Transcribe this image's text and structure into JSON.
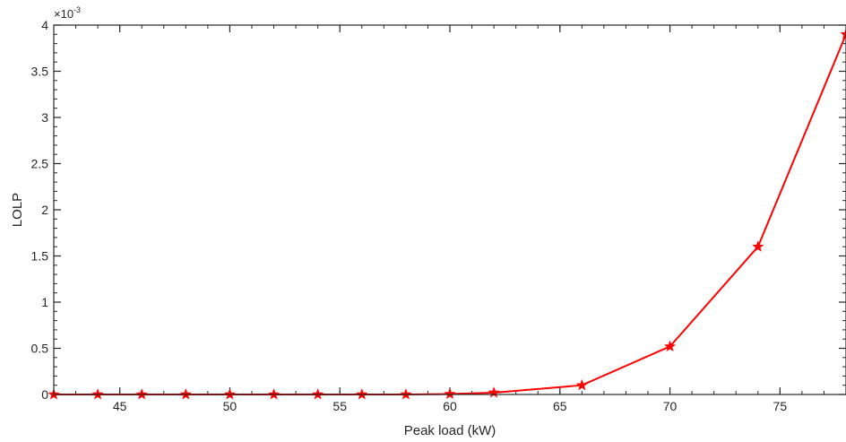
{
  "chart_data": {
    "type": "line",
    "xlabel": "Peak load (kW)",
    "ylabel": "LOLP",
    "xlim": [
      42,
      78
    ],
    "ylim": [
      0,
      4
    ],
    "y_exponent_base": "×10",
    "y_exponent_power": "-3",
    "x_ticks": [
      45,
      50,
      55,
      60,
      65,
      70,
      75
    ],
    "y_ticks": [
      0,
      0.5,
      1,
      1.5,
      2,
      2.5,
      3,
      3.5,
      4
    ],
    "x_tick_labels": [
      "45",
      "50",
      "55",
      "60",
      "65",
      "70",
      "75"
    ],
    "y_tick_labels": [
      "0",
      "0.5",
      "1",
      "1.5",
      "2",
      "2.5",
      "3",
      "3.5",
      "4"
    ],
    "series": [
      {
        "color": "#ff0000",
        "marker": "star",
        "x": [
          42,
          44,
          46,
          48,
          50,
          52,
          54,
          56,
          58,
          60,
          62,
          66,
          70,
          74,
          78
        ],
        "y": [
          0,
          0,
          0,
          0,
          0,
          0,
          0,
          0,
          0,
          0.005,
          0.02,
          0.1,
          0.52,
          1.6,
          3.9
        ]
      }
    ],
    "grid": false
  }
}
